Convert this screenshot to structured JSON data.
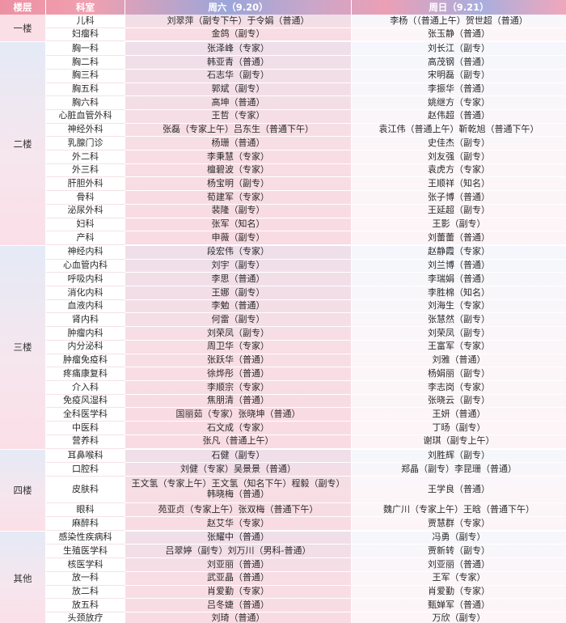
{
  "header": {
    "floor": "楼层",
    "department": "科室",
    "saturday": "周六（9.20）",
    "sunday": "周日（9.21）"
  },
  "colors": {
    "header_pink": "#ee91a4",
    "header_periwinkle": "#9ba6da",
    "saturday_cell_pink": "#fbe9ee",
    "sunday_cell_pink": "#fdf4f6",
    "floor_gradient_top": "#e4eaf6",
    "floor_gradient_bottom": "#fbdfe7"
  },
  "sections": [
    {
      "floor": "一楼",
      "rows": [
        {
          "dept": "儿科",
          "sat": "刘翠萍（副专下午）于令娟（普通）",
          "sun": "李杨（（普通上午）贺世超（普通）"
        },
        {
          "dept": "妇瘤科",
          "sat": "金鸽（副专）",
          "sun": "张玉静（普通）"
        }
      ]
    },
    {
      "floor": "二楼",
      "rows": [
        {
          "dept": "胸一科",
          "sat": "张泽峰（专家）",
          "sun": "刘长江（副专）"
        },
        {
          "dept": "胸二科",
          "sat": "韩亚青（普通）",
          "sun": "高茂钢（普通）"
        },
        {
          "dept": "胸三科",
          "sat": "石志华（副专）",
          "sun": "宋明磊（副专）"
        },
        {
          "dept": "胸五科",
          "sat": "郭斌（副专）",
          "sun": "李振华（普通）"
        },
        {
          "dept": "胸六科",
          "sat": "高坤（普通）",
          "sun": "姚继方（专家）"
        },
        {
          "dept": "心脏血管外科",
          "sat": "王哲（专家）",
          "sun": "赵伟超（普通）"
        },
        {
          "dept": "神经外科",
          "sat": "张磊（专家上午）吕东生（普通下午）",
          "sun": "袁江伟（普通上午）靳乾旭（普通下午）"
        },
        {
          "dept": "乳腺门诊",
          "sat": "杨珊（普通）",
          "sun": "史佳杰（副专）"
        },
        {
          "dept": "外二科",
          "sat": "李秉慧（专家）",
          "sun": "刘友强（副专）"
        },
        {
          "dept": "外三科",
          "sat": "檀碧波（专家）",
          "sun": "袁虎方（专家）"
        },
        {
          "dept": "肝胆外科",
          "sat": "杨宝明（副专）",
          "sun": "王顺祥（知名）"
        },
        {
          "dept": "骨科",
          "sat": "荀建军（专家）",
          "sun": "张子博（普通）"
        },
        {
          "dept": "泌尿外科",
          "sat": "裴隆（副专）",
          "sun": "王延超（副专）"
        },
        {
          "dept": "妇科",
          "sat": "张军（知名）",
          "sun": "王影（副专）"
        },
        {
          "dept": "产科",
          "sat": "申薇（副专）",
          "sun": "刘蕾蕾（普通）"
        }
      ]
    },
    {
      "floor": "三楼",
      "rows": [
        {
          "dept": "神经内科",
          "sat": "段宏伟（专家）",
          "sun": "赵静霞（专家）"
        },
        {
          "dept": "心血管内科",
          "sat": "刘宇（副专）",
          "sun": "刘兰博（普通）"
        },
        {
          "dept": "呼吸内科",
          "sat": "李思（普通）",
          "sun": "李瑞娟（普通）"
        },
        {
          "dept": "消化内科",
          "sat": "王娜（副专）",
          "sun": "李胜棉（知名）"
        },
        {
          "dept": "血液内科",
          "sat": "李勉（普通）",
          "sun": "刘海生（专家）"
        },
        {
          "dept": "肾内科",
          "sat": "何雷（副专）",
          "sun": "张慧然（副专）"
        },
        {
          "dept": "肿瘤内科",
          "sat": "刘荣凤（副专）",
          "sun": "刘荣凤（副专）"
        },
        {
          "dept": "内分泌科",
          "sat": "周卫华（专家）",
          "sun": "王富军（专家）"
        },
        {
          "dept": "肿瘤免疫科",
          "sat": "张跃华（普通）",
          "sun": "刘雅（普通）"
        },
        {
          "dept": "疼痛康复科",
          "sat": "徐烨彤（普通）",
          "sun": "杨娟丽（副专）"
        },
        {
          "dept": "介入科",
          "sat": "李顺宗（专家）",
          "sun": "李志岗（专家）"
        },
        {
          "dept": "免疫风湿科",
          "sat": "焦朋清（普通）",
          "sun": "张晓云（副专）"
        },
        {
          "dept": "全科医学科",
          "sat": "国丽茹（专家）张晓坤（普通）",
          "sun": "王妍（普通）"
        },
        {
          "dept": "中医科",
          "sat": "石文成（专家）",
          "sun": "丁旸（副专）"
        },
        {
          "dept": "营养科",
          "sat": "张凡（普通上午）",
          "sun": "谢琪（副专上午）"
        }
      ]
    },
    {
      "floor": "四楼",
      "rows": [
        {
          "dept": "耳鼻喉科",
          "sat": "石健（副专）",
          "sun": "刘胜辉（副专）"
        },
        {
          "dept": "口腔科",
          "sat": "刘健（专家）吴景景（普通）",
          "sun": "郑晶（副专）李昆珊（普通）"
        },
        {
          "dept": "皮肤科",
          "sat": "王文氢（专家上午）王文氢（知名下午）程毅（副专）韩晓梅（普通）",
          "sun": "王学良（普通）",
          "tall": true
        },
        {
          "dept": "眼科",
          "sat": "苑亚贞（专家上午）张双梅（普通下午）",
          "sun": "魏广川（专家上午）王晗（普通下午）"
        },
        {
          "dept": "麻醉科",
          "sat": "赵艾华（专家）",
          "sun": "贾慧群（专家）"
        }
      ]
    },
    {
      "floor": "其他",
      "rows": [
        {
          "dept": "感染性疾病科",
          "sat": "张耀中（普通）",
          "sun": "冯勇（副专）"
        },
        {
          "dept": "生殖医学科",
          "sat": "吕翠婷（副专）刘万川（男科-普通）",
          "sun": "贾新转（副专）"
        },
        {
          "dept": "核医学科",
          "sat": "刘亚丽（普通）",
          "sun": "刘亚丽（普通）"
        },
        {
          "dept": "放一科",
          "sat": "武亚晶（普通）",
          "sun": "王军（专家）"
        },
        {
          "dept": "放二科",
          "sat": "肖爱勤（专家）",
          "sun": "肖爱勤（专家）"
        },
        {
          "dept": "放五科",
          "sat": "吕冬婕（普通）",
          "sun": "甄婵军（普通）"
        },
        {
          "dept": "头颈放疗",
          "sat": "刘琦（普通）",
          "sun": "万欣（副专）"
        }
      ]
    }
  ]
}
